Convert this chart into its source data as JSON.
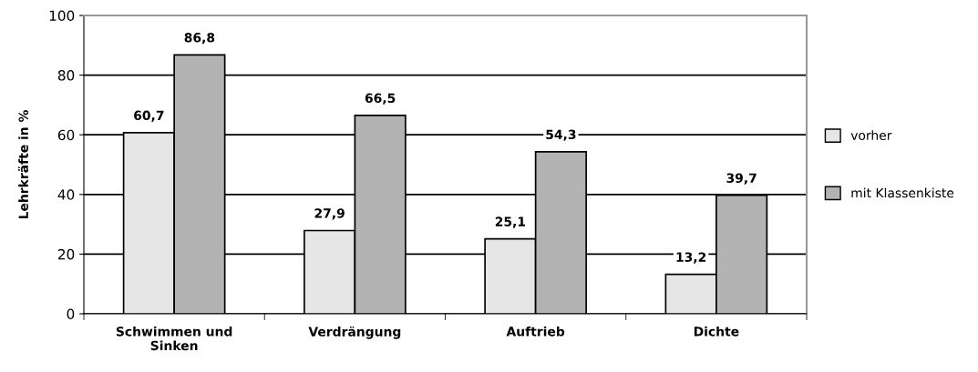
{
  "chart_data": {
    "type": "bar",
    "ylabel": "Lehrkräfte in %",
    "categories": [
      "Schwimmen und\nSinken",
      "Verdrängung",
      "Auftrieb",
      "Dichte"
    ],
    "series": [
      {
        "name": "vorher",
        "color": "#e6e6e6",
        "values": [
          60.7,
          27.9,
          25.1,
          13.2
        ],
        "value_labels": [
          "60,7",
          "27,9",
          "25,1",
          "13,2"
        ]
      },
      {
        "name": "mit Klassenkiste",
        "color": "#b3b3b3",
        "values": [
          86.8,
          66.5,
          54.3,
          39.7
        ],
        "value_labels": [
          "86,8",
          "66,5",
          "54,3",
          "39,7"
        ]
      }
    ],
    "ylim": [
      0,
      100
    ],
    "yticks": [
      0,
      20,
      40,
      60,
      80,
      100
    ],
    "grid": "y",
    "legend": "right"
  }
}
